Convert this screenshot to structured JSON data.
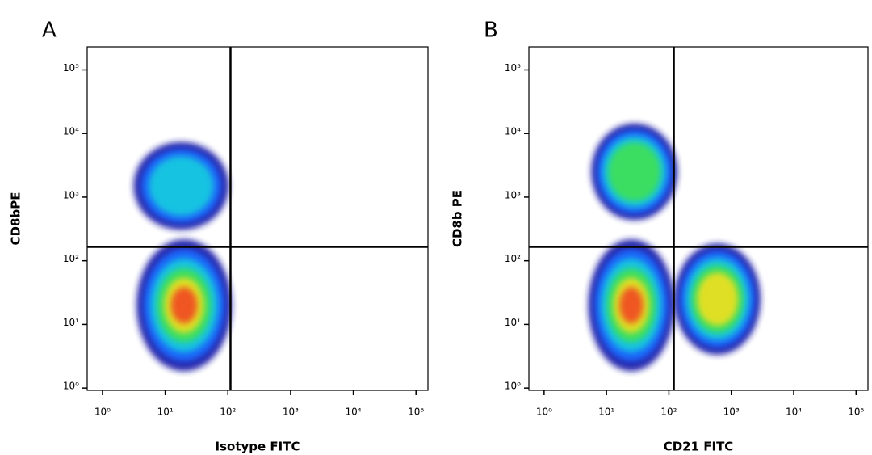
{
  "chart_data": [
    {
      "type": "density",
      "panel": "A",
      "xlabel": "Isotype FITC",
      "ylabel": "CD8bPE",
      "xscale": "log",
      "yscale": "log",
      "xlim": [
        0.57,
        155000
      ],
      "ylim": [
        0.92,
        230000
      ],
      "xticks": [
        {
          "value": 1,
          "label": "10⁰"
        },
        {
          "value": 10,
          "label": "10¹"
        },
        {
          "value": 100,
          "label": "10²"
        },
        {
          "value": 1000,
          "label": "10³"
        },
        {
          "value": 10000,
          "label": "10⁴"
        },
        {
          "value": 100000,
          "label": "10⁵"
        }
      ],
      "yticks": [
        {
          "value": 1,
          "label": "10⁰"
        },
        {
          "value": 10,
          "label": "10¹"
        },
        {
          "value": 100,
          "label": "10²"
        },
        {
          "value": 1000,
          "label": "10³"
        },
        {
          "value": 10000,
          "label": "10⁴"
        },
        {
          "value": 100000,
          "label": "10⁵"
        }
      ],
      "gates": {
        "x": 110,
        "y": 165
      },
      "populations": [
        {
          "x": 20,
          "y": 20,
          "sx": 0.33,
          "sy": 0.45,
          "density": 1
        },
        {
          "x": 18,
          "y": 1500,
          "sx": 0.33,
          "sy": 0.3,
          "density": 0.55
        }
      ]
    },
    {
      "type": "density",
      "panel": "B",
      "xlabel": "CD21 FITC",
      "ylabel": "CD8b PE",
      "xscale": "log",
      "yscale": "log",
      "xlim": [
        0.57,
        155000
      ],
      "ylim": [
        0.92,
        230000
      ],
      "xticks": [
        {
          "value": 1,
          "label": "10⁰"
        },
        {
          "value": 10,
          "label": "10¹"
        },
        {
          "value": 100,
          "label": "10²"
        },
        {
          "value": 1000,
          "label": "10³"
        },
        {
          "value": 10000,
          "label": "10⁴"
        },
        {
          "value": 100000,
          "label": "10⁵"
        }
      ],
      "yticks": [
        {
          "value": 1,
          "label": "10⁰"
        },
        {
          "value": 10,
          "label": "10¹"
        },
        {
          "value": 100,
          "label": "10²"
        },
        {
          "value": 1000,
          "label": "10³"
        },
        {
          "value": 10000,
          "label": "10⁴"
        },
        {
          "value": 100000,
          "label": "10⁵"
        }
      ],
      "gates": {
        "x": 120,
        "y": 165
      },
      "populations": [
        {
          "x": 25,
          "y": 20,
          "sx": 0.3,
          "sy": 0.45,
          "density": 1
        },
        {
          "x": 28,
          "y": 2500,
          "sx": 0.3,
          "sy": 0.33,
          "density": 0.6
        },
        {
          "x": 600,
          "y": 25,
          "sx": 0.3,
          "sy": 0.38,
          "density": 0.75
        }
      ]
    }
  ]
}
